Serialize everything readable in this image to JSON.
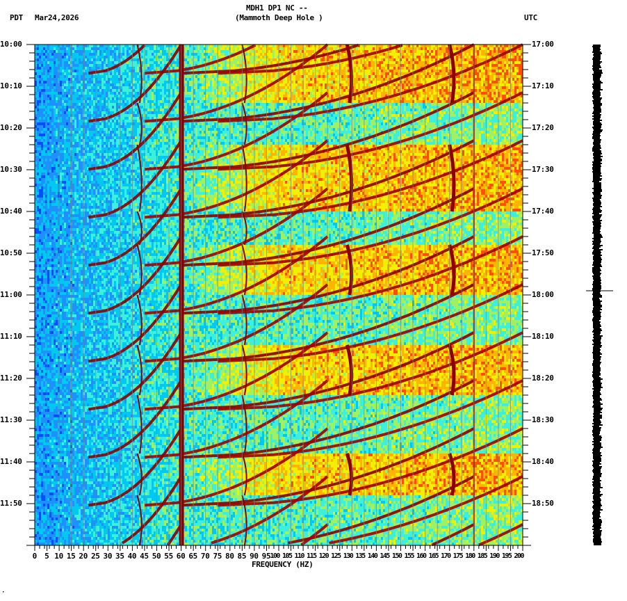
{
  "header": {
    "station_line": "MDH1 DP1 NC --",
    "site_line": "(Mammoth Deep Hole )",
    "left_timezone": "PDT",
    "date": "Mar24,2026",
    "right_timezone": "UTC"
  },
  "footer_mark": "·",
  "chart_data": {
    "type": "heatmap",
    "title": "MDH1 DP1 NC -- (Mammoth Deep Hole )",
    "xlabel": "FREQUENCY (HZ)",
    "ylabel_left": "PDT",
    "ylabel_right": "UTC",
    "xlim": [
      0,
      200
    ],
    "x_ticks": [
      0,
      5,
      10,
      15,
      20,
      25,
      30,
      35,
      40,
      45,
      50,
      55,
      60,
      65,
      70,
      75,
      80,
      85,
      90,
      95,
      100,
      105,
      110,
      115,
      120,
      125,
      130,
      135,
      140,
      145,
      150,
      155,
      160,
      165,
      170,
      175,
      180,
      185,
      190,
      195,
      200
    ],
    "y_ticks_left": [
      "10:00",
      "10:10",
      "10:20",
      "10:30",
      "10:40",
      "10:50",
      "11:00",
      "11:10",
      "11:20",
      "11:30",
      "11:40",
      "11:50"
    ],
    "y_ticks_right": [
      "17:00",
      "17:10",
      "17:20",
      "17:30",
      "17:40",
      "17:50",
      "18:00",
      "18:10",
      "18:20",
      "18:30",
      "18:40",
      "18:50"
    ],
    "time_range_minutes": 120,
    "colormap": [
      "#0050ff",
      "#1e90ff",
      "#00c8f0",
      "#3cf0dc",
      "#a0f064",
      "#f0f000",
      "#ffb400",
      "#ff5000",
      "#d20000",
      "#8b0000"
    ],
    "persistent_lines_hz": [
      {
        "freq": 60,
        "note": "strong constant line (dark red)"
      },
      {
        "freq": 180,
        "note": "thin constant line"
      }
    ],
    "chirp_cycle_minutes": 11.5,
    "chirp_harmonics": [
      {
        "start_hz": 22,
        "end_hz": 60
      },
      {
        "start_hz": 45,
        "end_hz": 120
      },
      {
        "start_hz": 60,
        "end_hz": 180
      },
      {
        "start_hz": 75,
        "end_hz": 200
      }
    ],
    "wandering_lines_hz": [
      42,
      85,
      128,
      170
    ],
    "noise_band_segments_minutes": [
      [
        0,
        14
      ],
      [
        14,
        24
      ],
      [
        24,
        40
      ],
      [
        40,
        48
      ],
      [
        48,
        60
      ],
      [
        60,
        72
      ],
      [
        72,
        84
      ],
      [
        84,
        98
      ],
      [
        98,
        108
      ],
      [
        108,
        120
      ]
    ],
    "seismogram_trace": {
      "position": "right",
      "color": "#000000",
      "event_minute": 59
    }
  }
}
